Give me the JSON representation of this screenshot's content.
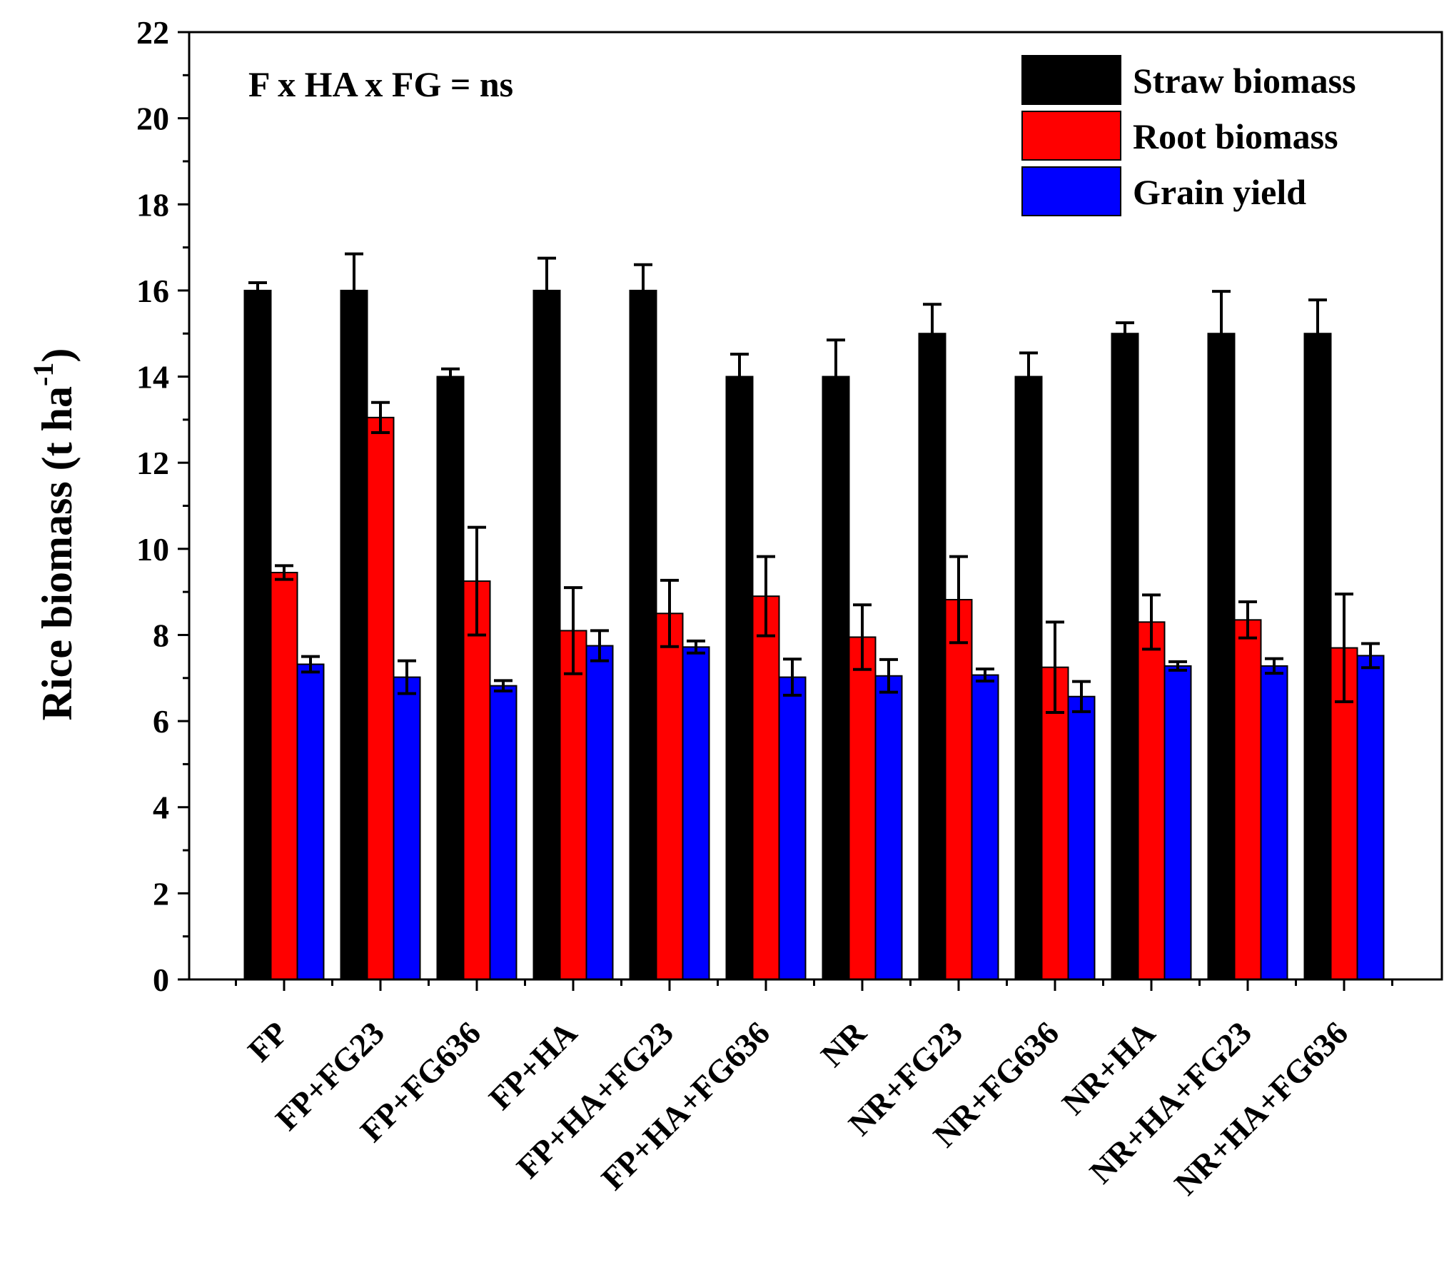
{
  "chart_data": {
    "type": "bar",
    "title": "",
    "annotation": "F x HA x FG = ns",
    "xlabel": "",
    "ylabel": "Rice biomass (t ha",
    "ylabel_superscript": "-1",
    "ylabel_close": ")",
    "ylim": [
      0,
      22
    ],
    "yticks": [
      "0",
      "2",
      "4",
      "6",
      "8",
      "10",
      "12",
      "14",
      "16",
      "18",
      "20",
      "22"
    ],
    "legend_position": "top-right",
    "categories": [
      "FP",
      "FP+FG23",
      "FP+FG636",
      "FP+HA",
      "FP+HA+FG23",
      "FP+HA+FG636",
      "NR",
      "NR+FG23",
      "NR+FG636",
      "NR+HA",
      "NR+HA+FG23",
      "NR+HA+FG636"
    ],
    "series": [
      {
        "name": "Straw biomass",
        "color": "#000000",
        "values": [
          16.0,
          16.0,
          14.0,
          16.0,
          16.0,
          14.0,
          14.0,
          15.0,
          14.0,
          15.0,
          15.0,
          15.0
        ],
        "errors": [
          0.18,
          0.85,
          0.18,
          0.75,
          0.6,
          0.52,
          0.85,
          0.68,
          0.55,
          0.25,
          0.98,
          0.78
        ]
      },
      {
        "name": "Root biomass",
        "color": "#ff0000",
        "values": [
          9.45,
          13.05,
          9.25,
          8.1,
          8.5,
          8.9,
          7.95,
          8.82,
          7.25,
          8.3,
          8.35,
          7.7
        ],
        "errors": [
          0.16,
          0.35,
          1.25,
          1.0,
          0.77,
          0.92,
          0.75,
          1.0,
          1.05,
          0.63,
          0.42,
          1.25
        ]
      },
      {
        "name": "Grain yield",
        "color": "#0000ff",
        "values": [
          7.32,
          7.02,
          6.82,
          7.75,
          7.72,
          7.02,
          7.05,
          7.07,
          6.57,
          7.28,
          7.28,
          7.52
        ],
        "errors": [
          0.18,
          0.38,
          0.12,
          0.35,
          0.14,
          0.42,
          0.38,
          0.14,
          0.35,
          0.1,
          0.17,
          0.28
        ]
      }
    ]
  }
}
